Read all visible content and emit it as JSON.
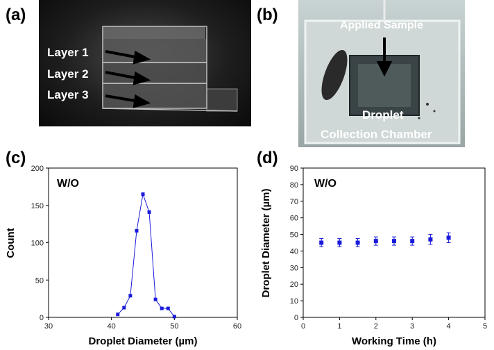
{
  "panels": {
    "a": "(a)",
    "b": "(b)",
    "c": "(c)",
    "d": "(d)"
  },
  "photo_a": {
    "layers": [
      "Layer 1",
      "Layer 2",
      "Layer 3"
    ]
  },
  "photo_b": {
    "applied_sample": "Applied Sample",
    "chamber_line1": "Droplet",
    "chamber_line2": "Collection Chamber"
  },
  "colors": {
    "series": "#1a1adb",
    "axis": "#000000"
  },
  "chart_data": [
    {
      "type": "line",
      "annotation": "W/O",
      "xlabel": "Droplet Diameter (µm)",
      "ylabel": "Count",
      "xlim": [
        30,
        60
      ],
      "ylim": [
        0,
        200
      ],
      "xticks": [
        30,
        40,
        50,
        60
      ],
      "yticks": [
        0,
        50,
        100,
        150,
        200
      ],
      "grid": false,
      "series": [
        {
          "x": [
            41,
            42,
            43,
            44,
            45,
            46,
            47,
            48,
            49,
            50
          ],
          "y": [
            4,
            13,
            29,
            116,
            165,
            141,
            24,
            12,
            12,
            1
          ]
        }
      ]
    },
    {
      "type": "scatter",
      "annotation": "W/O",
      "xlabel": "Working Time (h)",
      "ylabel": "Droplet Diameter (µm)",
      "xlim": [
        0,
        5
      ],
      "ylim": [
        0,
        90
      ],
      "xticks": [
        0,
        1,
        2,
        3,
        4,
        5
      ],
      "yticks": [
        0,
        10,
        20,
        30,
        40,
        50,
        60,
        70,
        80,
        90
      ],
      "grid": false,
      "error_bars": true,
      "series": [
        {
          "x": [
            0.5,
            1.0,
            1.5,
            2.0,
            2.5,
            3.0,
            3.5,
            4.0
          ],
          "y": [
            45,
            45,
            45,
            46,
            46,
            46,
            47,
            48
          ],
          "err": [
            2.5,
            2.5,
            2.5,
            2.5,
            2.5,
            2.5,
            3,
            3
          ]
        }
      ]
    }
  ]
}
